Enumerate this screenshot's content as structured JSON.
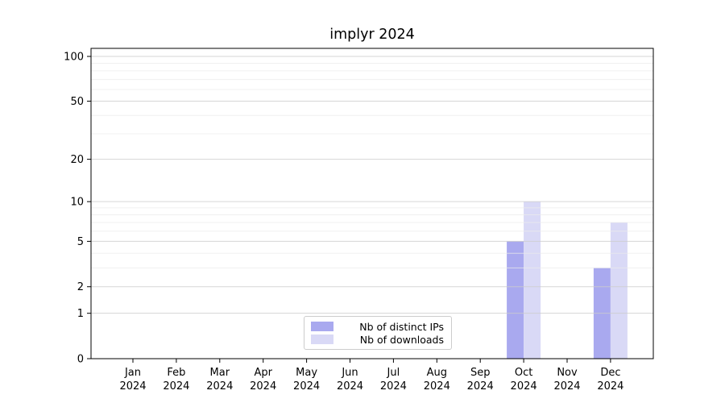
{
  "title": "implyr 2024",
  "legend": {
    "items": [
      {
        "label": "Nb of distinct IPs",
        "color": "#a9a9ef"
      },
      {
        "label": "Nb of downloads",
        "color": "#d9d9f6"
      }
    ]
  },
  "chart_data": {
    "type": "bar",
    "title": "implyr 2024",
    "categories": [
      "Jan",
      "Feb",
      "Mar",
      "Apr",
      "May",
      "Jun",
      "Jul",
      "Aug",
      "Sep",
      "Oct",
      "Nov",
      "Dec"
    ],
    "x_sublabel": "2024",
    "series": [
      {
        "name": "Nb of distinct IPs",
        "color": "#a9a9ef",
        "values": [
          0,
          0,
          0,
          0,
          0,
          0,
          0,
          0,
          0,
          5,
          0,
          3
        ]
      },
      {
        "name": "Nb of downloads",
        "color": "#d9d9f6",
        "values": [
          0,
          0,
          0,
          0,
          0,
          0,
          0,
          0,
          0,
          10,
          0,
          7
        ]
      }
    ],
    "yscale": "log1p",
    "ylim": [
      0,
      113
    ],
    "yticks": [
      0,
      1,
      2,
      5,
      10,
      20,
      50,
      100
    ],
    "yticks_minor": [
      3,
      4,
      6,
      7,
      8,
      9,
      30,
      40,
      60,
      70,
      80,
      90
    ],
    "grid": "horizontal-on",
    "legend_position": "lower center",
    "colors": {
      "major_grid": "#cccccc",
      "minor_grid": "#ebebeb",
      "spine": "#000000",
      "text": "#000000"
    }
  }
}
